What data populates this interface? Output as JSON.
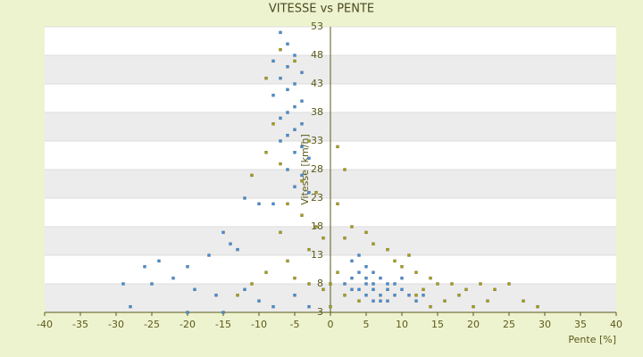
{
  "chart_data": {
    "type": "scatter",
    "title": "VITESSE vs PENTE",
    "x_label": "Pente [%]",
    "y_label": "Vitesse [km/h]",
    "xlim": [
      -40,
      40
    ],
    "ylim": [
      3,
      53
    ],
    "xticks": [
      -40,
      -35,
      -30,
      -25,
      -20,
      -15,
      -10,
      -5,
      0,
      5,
      10,
      15,
      20,
      25,
      30,
      35,
      40
    ],
    "yticks": [
      3,
      8,
      13,
      18,
      23,
      28,
      33,
      38,
      43,
      48,
      53
    ],
    "grid": true,
    "series": [
      {
        "color": "#3d8fe0",
        "x": [
          -7,
          -6,
          -5,
          -8,
          -6,
          -4,
          -7,
          -5,
          -6,
          -8,
          -4,
          -5,
          -6,
          -7,
          -4,
          -5,
          -6,
          -7,
          -4,
          -5,
          -3,
          -6,
          -4,
          -5,
          -3,
          -8,
          -10,
          -12,
          -15,
          -14,
          -13,
          -17,
          -20,
          -24,
          -26,
          -29,
          -25,
          -22,
          -19,
          -16,
          -12,
          -10,
          -8,
          -5,
          -3,
          -28,
          -20,
          -15,
          3,
          4,
          5,
          6,
          7,
          8,
          4,
          5,
          6,
          7,
          8,
          9,
          10,
          11,
          12,
          3,
          2,
          5,
          6,
          4,
          9,
          10,
          13,
          7,
          6,
          8,
          5,
          3
        ],
        "y": [
          52,
          50,
          48,
          47,
          46,
          45,
          44,
          43,
          42,
          41,
          40,
          39,
          38,
          37,
          36,
          35,
          34,
          33,
          32,
          31,
          30,
          28,
          27,
          25,
          24,
          22,
          22,
          23,
          17,
          15,
          14,
          13,
          11,
          12,
          11,
          8,
          8,
          9,
          7,
          6,
          7,
          5,
          4,
          6,
          4,
          4,
          3,
          3,
          12,
          13,
          11,
          10,
          9,
          8,
          7,
          6,
          7,
          6,
          7,
          6,
          7,
          6,
          5,
          9,
          8,
          9,
          8,
          10,
          8,
          9,
          6,
          5,
          5,
          5,
          8,
          7
        ]
      },
      {
        "color": "#a8a000",
        "x": [
          -7,
          -5,
          -9,
          -8,
          -3,
          -9,
          -11,
          -7,
          -4,
          -2,
          -6,
          -4,
          -2,
          -7,
          -1,
          -3,
          -6,
          -5,
          -3,
          -1,
          -9,
          -11,
          -13,
          1,
          2,
          1,
          3,
          2,
          5,
          6,
          8,
          9,
          10,
          12,
          14,
          15,
          17,
          19,
          21,
          23,
          25,
          27,
          29,
          22,
          18,
          16,
          14,
          12,
          20,
          1,
          2,
          0,
          0,
          11,
          13,
          4
        ],
        "y": [
          49,
          47,
          44,
          36,
          33,
          31,
          27,
          29,
          26,
          24,
          22,
          20,
          18,
          17,
          16,
          14,
          12,
          9,
          8,
          7,
          10,
          8,
          6,
          32,
          28,
          22,
          18,
          16,
          17,
          15,
          14,
          12,
          11,
          10,
          9,
          8,
          8,
          7,
          8,
          7,
          8,
          5,
          4,
          5,
          6,
          5,
          4,
          6,
          4,
          10,
          6,
          8,
          4,
          13,
          7,
          5
        ]
      }
    ]
  }
}
